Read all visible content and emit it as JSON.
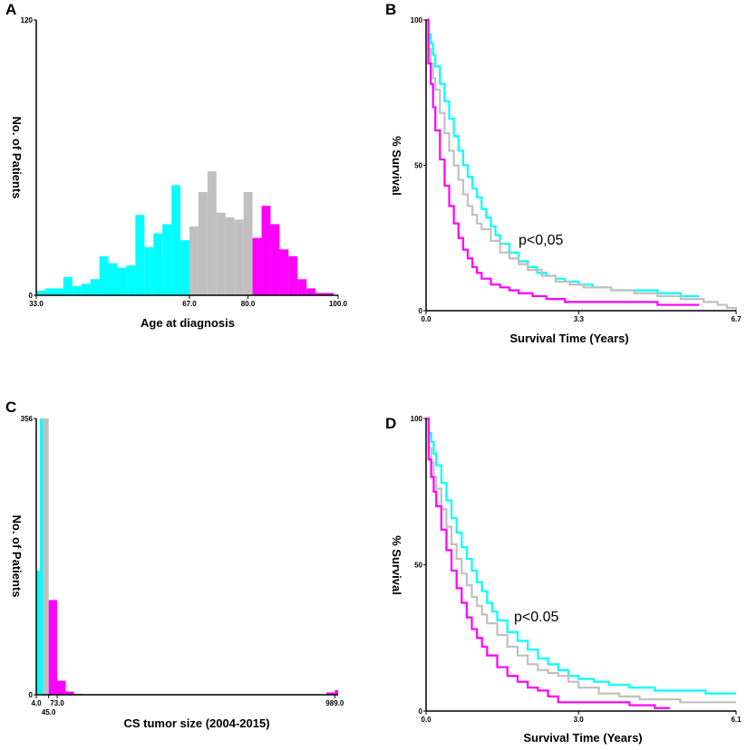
{
  "colors": {
    "group1": "#00ffff",
    "group2": "#c0c0c0",
    "group3": "#ff00ff"
  },
  "chart_data": [
    {
      "panel": "A",
      "type": "bar",
      "xlabel": "Age at diagnosis",
      "ylabel": "No. of Patients",
      "xlim": [
        33,
        100
      ],
      "ylim": [
        0,
        120
      ],
      "x_ticks": [
        {
          "value": 33,
          "label": "33.0"
        },
        {
          "value": 67,
          "label": "67.0"
        },
        {
          "value": 80,
          "label": "80.0"
        },
        {
          "value": 100,
          "label": "100.0"
        }
      ],
      "y_ticks": [
        {
          "value": 0,
          "label": "0"
        },
        {
          "value": 120,
          "label": "120"
        }
      ],
      "bin_edges": [
        33,
        35,
        37,
        39,
        41,
        43,
        45,
        47,
        49,
        51,
        53,
        55,
        57,
        59,
        61,
        63,
        65,
        67,
        69,
        71,
        73,
        75,
        77,
        79,
        81,
        83,
        85,
        87,
        89,
        91,
        93,
        95,
        97,
        99
      ],
      "values": [
        2,
        3,
        3,
        8,
        4,
        5,
        7,
        17,
        14,
        12,
        13,
        35,
        21,
        27,
        31,
        48,
        24,
        30,
        45,
        54,
        36,
        34,
        33,
        45,
        25,
        39,
        31,
        20,
        17,
        7,
        3,
        1,
        1
      ],
      "groups": [
        1,
        1,
        1,
        1,
        1,
        1,
        1,
        1,
        1,
        1,
        1,
        1,
        1,
        1,
        1,
        1,
        1,
        2,
        2,
        2,
        2,
        2,
        2,
        2,
        3,
        3,
        3,
        3,
        3,
        3,
        3,
        3,
        3
      ]
    },
    {
      "panel": "B",
      "type": "line",
      "xlabel": "Survival Time (Years)",
      "ylabel": "% Survival",
      "xlim": [
        0,
        6.7
      ],
      "ylim": [
        0,
        100
      ],
      "x_ticks": [
        {
          "value": 0,
          "label": "0.0"
        },
        {
          "value": 3.3,
          "label": "3.3"
        },
        {
          "value": 6.7,
          "label": "6.7"
        }
      ],
      "y_ticks": [
        {
          "value": 0,
          "label": "0"
        },
        {
          "value": 50,
          "label": "50"
        },
        {
          "value": 100,
          "label": "100"
        }
      ],
      "annotation": "p<0,05",
      "series": [
        {
          "name": "group1",
          "x": [
            0,
            0.05,
            0.1,
            0.15,
            0.2,
            0.3,
            0.4,
            0.5,
            0.6,
            0.7,
            0.8,
            0.9,
            1,
            1.1,
            1.2,
            1.3,
            1.4,
            1.5,
            1.6,
            1.8,
            2.0,
            2.2,
            2.4,
            2.6,
            2.8,
            3.0,
            3.3,
            3.6,
            4,
            4.5,
            5,
            5.5,
            5.9
          ],
          "y": [
            100,
            95,
            92,
            88,
            84,
            78,
            72,
            66,
            60,
            55,
            50,
            46,
            42,
            39,
            35,
            32,
            29,
            26,
            23,
            20,
            17,
            15,
            13,
            12,
            11,
            10,
            9,
            8,
            7,
            7,
            6,
            5,
            5
          ]
        },
        {
          "name": "group2",
          "x": [
            0,
            0.05,
            0.1,
            0.15,
            0.2,
            0.3,
            0.4,
            0.5,
            0.6,
            0.7,
            0.8,
            0.9,
            1,
            1.1,
            1.2,
            1.4,
            1.6,
            1.8,
            2.0,
            2.2,
            2.5,
            2.8,
            3.1,
            3.4,
            4,
            4.5,
            5,
            5.5,
            6,
            6.3,
            6.5,
            6.7
          ],
          "y": [
            100,
            90,
            85,
            80,
            76,
            68,
            61,
            55,
            50,
            45,
            40,
            36,
            33,
            30,
            28,
            24,
            20,
            18,
            16,
            14,
            12,
            10,
            9,
            8,
            7,
            6,
            5,
            4,
            3,
            2,
            1,
            0
          ]
        },
        {
          "name": "group3",
          "x": [
            0,
            0.05,
            0.1,
            0.15,
            0.2,
            0.3,
            0.4,
            0.5,
            0.6,
            0.7,
            0.8,
            0.9,
            1,
            1.1,
            1.2,
            1.4,
            1.6,
            1.8,
            2.0,
            2.3,
            2.6,
            3,
            4,
            5,
            5.9
          ],
          "y": [
            100,
            85,
            78,
            70,
            62,
            52,
            43,
            36,
            30,
            25,
            21,
            18,
            15,
            13,
            11,
            9,
            8,
            7,
            6,
            5,
            4,
            3,
            3,
            2,
            2
          ]
        }
      ]
    },
    {
      "panel": "C",
      "type": "bar",
      "xlabel": "CS tumor size (2004-2015)",
      "ylabel": "No. of Patients",
      "xlim": [
        4,
        1000
      ],
      "ylim": [
        0,
        356
      ],
      "x_ticks": [
        {
          "value": 4,
          "label": "4.0",
          "row": 1
        },
        {
          "value": 45,
          "label": "45.0",
          "row": 2
        },
        {
          "value": 73,
          "label": "73.0",
          "row": 1
        },
        {
          "value": 989,
          "label": "989.0",
          "row": 1
        }
      ],
      "y_ticks": [
        {
          "value": 0,
          "label": "0"
        },
        {
          "value": 356,
          "label": "356"
        }
      ],
      "bars": [
        {
          "x0": 4,
          "x1": 16,
          "value": 160,
          "group": 1
        },
        {
          "x0": 16,
          "x1": 25,
          "value": 356,
          "group": 1
        },
        {
          "x0": 25,
          "x1": 45,
          "value": 356,
          "group": 2
        },
        {
          "x0": 45,
          "x1": 73,
          "value": 122,
          "group": 3
        },
        {
          "x0": 73,
          "x1": 101,
          "value": 18,
          "group": 3
        },
        {
          "x0": 101,
          "x1": 129,
          "value": 4,
          "group": 3
        },
        {
          "x0": 129,
          "x1": 157,
          "value": 1,
          "group": 3
        },
        {
          "x0": 961,
          "x1": 989,
          "value": 3,
          "group": 3
        },
        {
          "x0": 989,
          "x1": 1000,
          "value": 6,
          "group": 3
        }
      ]
    },
    {
      "panel": "D",
      "type": "line",
      "xlabel": "Survival Time (Years)",
      "ylabel": "% Survival",
      "xlim": [
        0,
        6.1
      ],
      "ylim": [
        0,
        100
      ],
      "x_ticks": [
        {
          "value": 0,
          "label": "0.0"
        },
        {
          "value": 3.0,
          "label": "3.0"
        },
        {
          "value": 6.1,
          "label": "6.1"
        }
      ],
      "y_ticks": [
        {
          "value": 0,
          "label": "0"
        },
        {
          "value": 50,
          "label": "50"
        },
        {
          "value": 100,
          "label": "100"
        }
      ],
      "annotation": "p<0.05",
      "series": [
        {
          "name": "group1",
          "x": [
            0,
            0.05,
            0.1,
            0.15,
            0.2,
            0.3,
            0.4,
            0.5,
            0.6,
            0.7,
            0.8,
            0.9,
            1,
            1.1,
            1.2,
            1.3,
            1.4,
            1.6,
            1.8,
            2.0,
            2.2,
            2.4,
            2.6,
            2.8,
            3.0,
            3.3,
            3.6,
            4,
            4.5,
            5,
            5.5,
            6.1
          ],
          "y": [
            100,
            95,
            92,
            88,
            84,
            78,
            72,
            66,
            61,
            56,
            52,
            48,
            44,
            41,
            37,
            34,
            31,
            27,
            24,
            21,
            18,
            16,
            14,
            12,
            11,
            10,
            9,
            8,
            7,
            7,
            6,
            6
          ]
        },
        {
          "name": "group2",
          "x": [
            0,
            0.05,
            0.1,
            0.15,
            0.2,
            0.3,
            0.4,
            0.5,
            0.6,
            0.7,
            0.8,
            0.9,
            1,
            1.1,
            1.2,
            1.4,
            1.6,
            1.8,
            2.0,
            2.2,
            2.4,
            2.6,
            2.8,
            3.0,
            3.4,
            3.8,
            4.2,
            4.6,
            5,
            5.5,
            6.1
          ],
          "y": [
            100,
            90,
            85,
            80,
            76,
            69,
            63,
            57,
            52,
            47,
            43,
            39,
            36,
            33,
            30,
            26,
            22,
            19,
            16,
            14,
            13,
            12,
            10,
            8,
            6,
            5,
            4,
            4,
            3,
            3,
            3
          ]
        },
        {
          "name": "group3",
          "x": [
            0,
            0.05,
            0.1,
            0.15,
            0.2,
            0.3,
            0.4,
            0.5,
            0.6,
            0.7,
            0.8,
            0.9,
            1,
            1.1,
            1.2,
            1.4,
            1.6,
            1.8,
            2.0,
            2.2,
            2.4,
            2.6,
            3,
            3.5,
            4,
            4.5,
            4.8
          ],
          "y": [
            100,
            86,
            80,
            75,
            70,
            62,
            55,
            48,
            42,
            37,
            32,
            28,
            25,
            22,
            19,
            15,
            12,
            10,
            8,
            7,
            5,
            3,
            3,
            3,
            2,
            1,
            1
          ]
        }
      ]
    }
  ]
}
